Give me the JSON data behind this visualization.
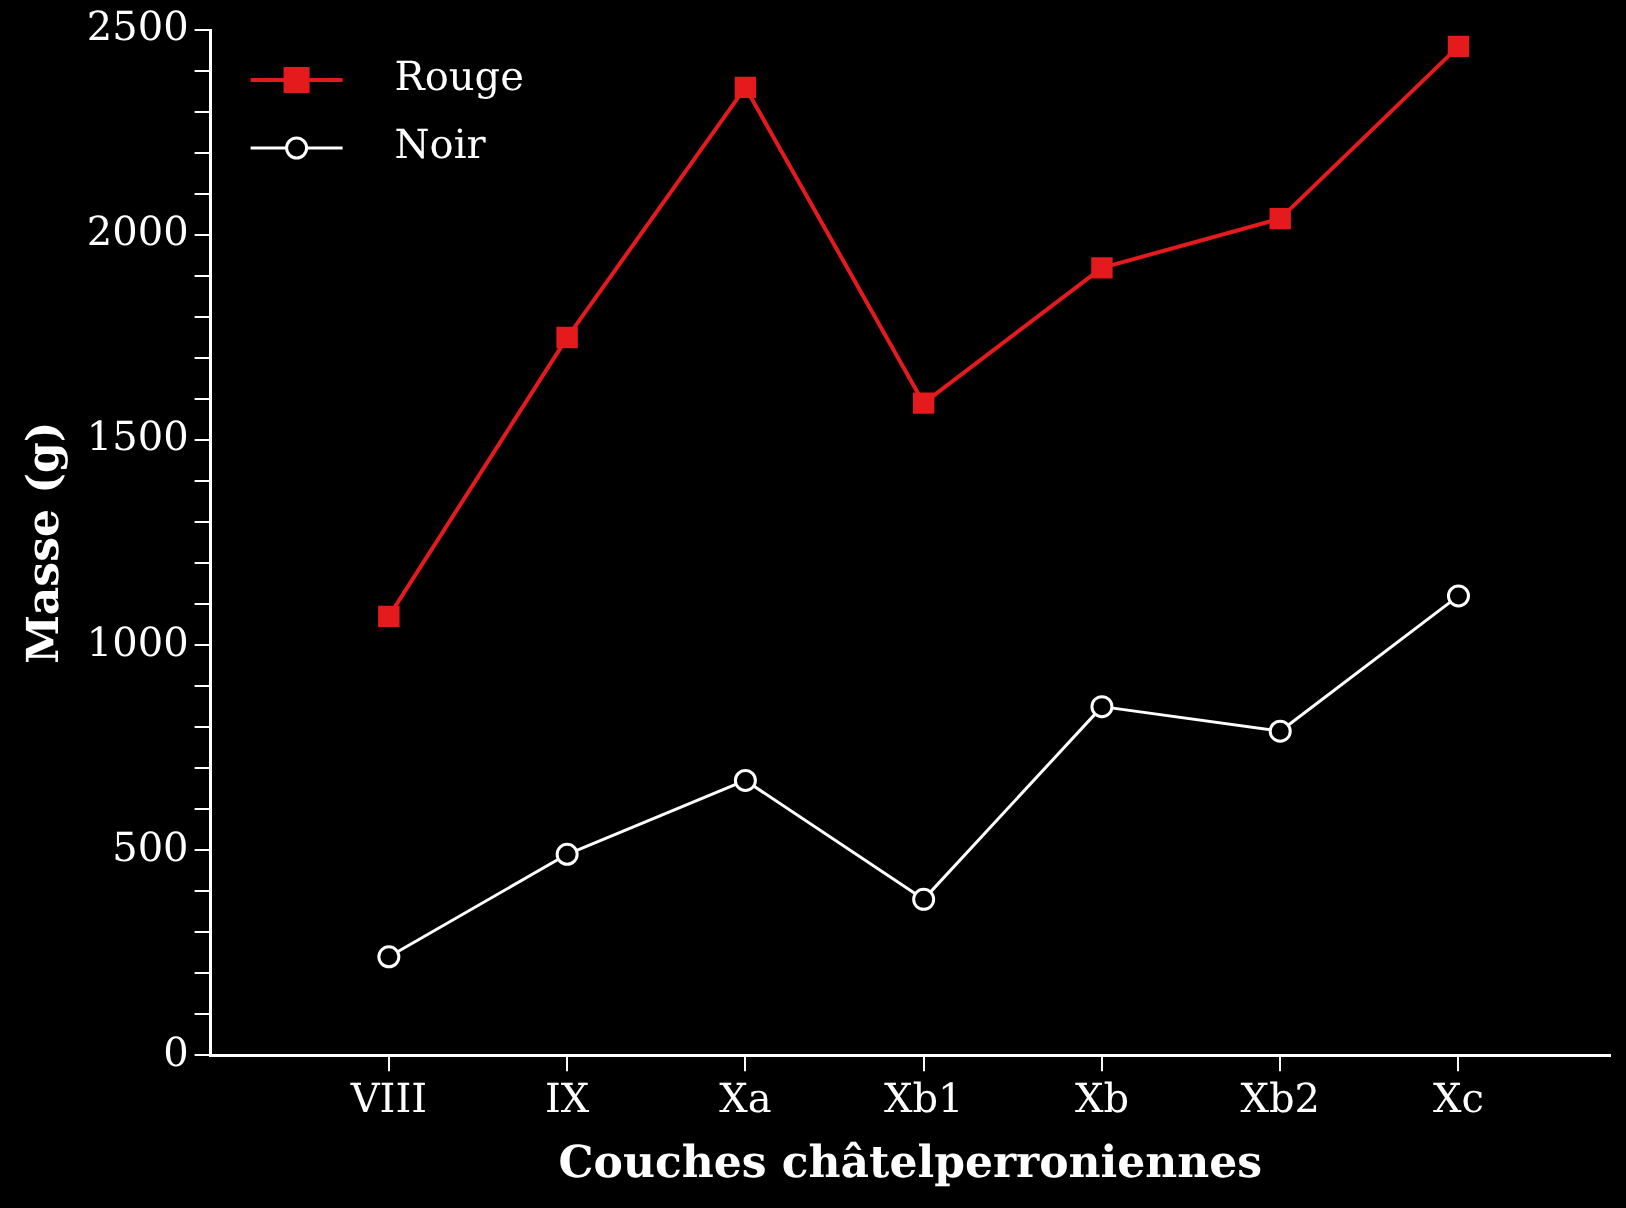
{
  "chart_data": {
    "type": "line",
    "xlabel": "Couches châtelperroniennes",
    "ylabel": "Masse (g)",
    "categories": [
      "VIII",
      "IX",
      "Xa",
      "Xb1",
      "Xb",
      "Xb2",
      "Xc"
    ],
    "series": [
      {
        "name": "Rouge",
        "color": "#e41a1c",
        "marker": "square",
        "values": [
          1070,
          1750,
          2360,
          1590,
          1920,
          2040,
          2460
        ]
      },
      {
        "name": "Noir",
        "color": "#ffffff",
        "marker": "circle",
        "values": [
          240,
          490,
          670,
          380,
          850,
          790,
          1120
        ]
      }
    ],
    "ylim": [
      0,
      2500
    ],
    "yticks": [
      0,
      {
        "value": 100,
        "label": null
      },
      {
        "value": 200,
        "label": null
      },
      {
        "value": 300,
        "label": null
      },
      {
        "value": 400,
        "label": null
      },
      500,
      {
        "value": 600,
        "label": null
      },
      {
        "value": 700,
        "label": null
      },
      {
        "value": 800,
        "label": null
      },
      {
        "value": 900,
        "label": null
      },
      1000,
      {
        "value": 1100,
        "label": null
      },
      {
        "value": 1200,
        "label": null
      },
      {
        "value": 1300,
        "label": null
      },
      {
        "value": 1400,
        "label": null
      },
      1500,
      {
        "value": 1600,
        "label": null
      },
      {
        "value": 1700,
        "label": null
      },
      {
        "value": 1800,
        "label": null
      },
      {
        "value": 1900,
        "label": null
      },
      2000,
      {
        "value": 2100,
        "label": null
      },
      {
        "value": 2200,
        "label": null
      },
      {
        "value": 2300,
        "label": null
      },
      {
        "value": 2400,
        "label": null
      },
      2500
    ],
    "grid": false,
    "legend": "top left",
    "line_style": "solid"
  }
}
